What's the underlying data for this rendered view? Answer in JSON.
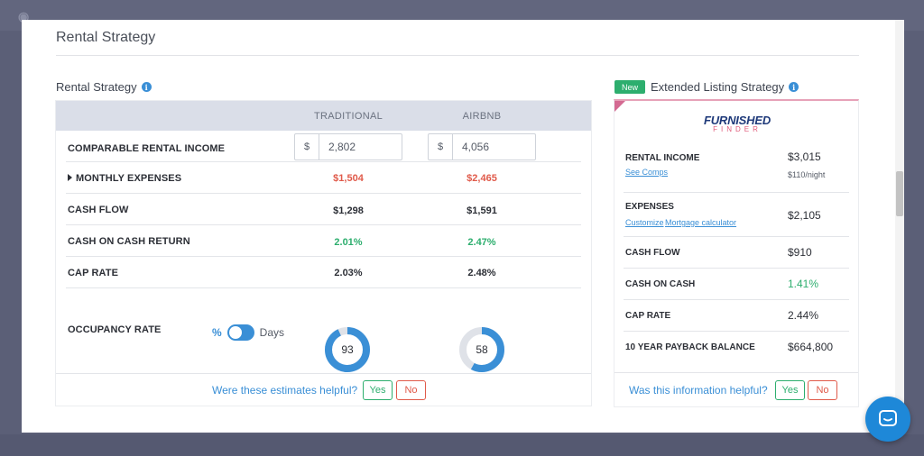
{
  "modal": {
    "title": "Rental Strategy"
  },
  "rental": {
    "heading": "Rental Strategy",
    "columns": [
      "TRADITIONAL",
      "AIRBNB"
    ],
    "rows": {
      "income": {
        "label": "COMPARABLE RENTAL INCOME",
        "currency": "$",
        "traditional": "2,802",
        "airbnb": "4,056"
      },
      "expenses": {
        "label": "MONTHLY EXPENSES",
        "traditional": "$1,504",
        "airbnb": "$2,465"
      },
      "cashflow": {
        "label": "CASH FLOW",
        "traditional": "$1,298",
        "airbnb": "$1,591"
      },
      "coc": {
        "label": "CASH ON CASH RETURN",
        "traditional": "2.01%",
        "airbnb": "2.47%"
      },
      "cap": {
        "label": "CAP RATE",
        "traditional": "2.03%",
        "airbnb": "2.48%"
      },
      "occupancy": {
        "label": "OCCUPANCY RATE",
        "toggle_left": "%",
        "toggle_right": "Days",
        "traditional": "93",
        "airbnb": "58",
        "traditional_fraction": 0.93,
        "airbnb_fraction": 0.58
      }
    },
    "footer": {
      "question": "Were these estimates helpful?",
      "yes": "Yes",
      "no": "No"
    }
  },
  "extended": {
    "badge": "New",
    "heading": "Extended Listing Strategy",
    "logo_top": "FURNISHED",
    "logo_bottom": "FINDER",
    "rows": {
      "income": {
        "label": "RENTAL INCOME",
        "value": "$3,015",
        "sub": "$110/night",
        "link": "See Comps"
      },
      "expenses": {
        "label": "EXPENSES",
        "value": "$2,105",
        "link1": "Customize",
        "link2": "Mortgage calculator"
      },
      "cashflow": {
        "label": "CASH FLOW",
        "value": "$910"
      },
      "coc": {
        "label": "CASH ON CASH",
        "value": "1.41%"
      },
      "cap": {
        "label": "CAP RATE",
        "value": "2.44%"
      },
      "payback": {
        "label": "10 YEAR PAYBACK BALANCE",
        "value": "$664,800"
      }
    },
    "footer": {
      "question": "Was this information helpful?",
      "yes": "Yes",
      "no": "No"
    }
  },
  "colors": {
    "accent": "#3a8fd6",
    "positive": "#2dae6e",
    "negative": "#e05a4a",
    "donut_track": "#dfe2e8"
  }
}
